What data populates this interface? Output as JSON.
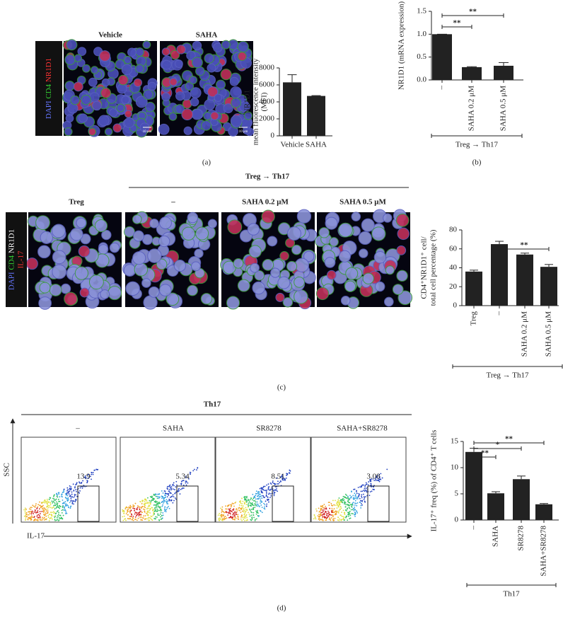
{
  "chart_data": [
    {
      "type": "bar",
      "ylabel": [
        "NR1D1",
        "mean fluorescence intensity",
        "(MFI)"
      ],
      "categories": [
        "Vehicle",
        "SAHA"
      ],
      "values": [
        6300,
        4700
      ],
      "errors": [
        900,
        40
      ],
      "color": "#222222",
      "ylim": [
        0,
        8000
      ],
      "yticks": [
        0,
        2000,
        4000,
        6000,
        8000
      ]
    },
    {
      "type": "bar",
      "ylabel": [
        "NR1D1 (mRNA expression)"
      ],
      "categories": [
        "–",
        "SAHA 0.2 μM",
        "SAHA 0.5 μM"
      ],
      "values": [
        1.0,
        0.28,
        0.31
      ],
      "errors": [
        0,
        0.01,
        0.07
      ],
      "color": "#222222",
      "ylim": [
        0,
        1.5
      ],
      "yticks": [
        {
          "value": 0,
          "label": "0.0"
        },
        {
          "value": 0.5,
          "label": "0.5"
        },
        {
          "value": 1,
          "label": "1.0"
        },
        {
          "value": 1.5,
          "label": "1.5"
        }
      ],
      "significance": [
        {
          "from": 0,
          "to": 1,
          "label": "**"
        },
        {
          "from": 0,
          "to": 2,
          "label": "**"
        }
      ],
      "group_label": "Treg → Th17"
    },
    {
      "type": "bar",
      "ylabel": [
        "CD4⁺NR1D1⁺ cell/",
        "total cell percentage (%)"
      ],
      "categories": [
        "Treg",
        "–",
        "SAHA 0.2 μM",
        "SAHA 0.5 μM"
      ],
      "values": [
        36,
        65,
        54,
        41
      ],
      "errors": [
        1.5,
        3,
        1.5,
        2.5
      ],
      "color": "#222222",
      "ylim": [
        0,
        80
      ],
      "yticks": [
        0,
        20,
        40,
        60,
        80
      ],
      "significance": [
        {
          "from": 1,
          "to": 3,
          "label": "**"
        }
      ],
      "group_label": "Treg → Th17"
    },
    {
      "type": "bar",
      "ylabel": [
        "IL-17⁺ freq (%) of CD4⁺ T cells"
      ],
      "categories": [
        "–",
        "SAHA",
        "SR8278",
        "SAHA+SR8278"
      ],
      "values": [
        13,
        5.1,
        7.8,
        3.0
      ],
      "errors": [
        0.7,
        0.3,
        0.6,
        0.15
      ],
      "color": "#222222",
      "ylim": [
        0,
        15
      ],
      "yticks": [
        0,
        5,
        10,
        15
      ],
      "significance": [
        {
          "from": 0,
          "to": 1,
          "label": "**"
        },
        {
          "from": 0,
          "to": 2,
          "label": "*"
        },
        {
          "from": 0,
          "to": 3,
          "label": "**"
        }
      ],
      "group_label": "Th17"
    }
  ],
  "figure": {
    "panel_labels": [
      "(a)",
      "(b)",
      "(c)",
      "(d)"
    ],
    "a": {
      "columns": [
        "Vehicle",
        "SAHA"
      ],
      "scale_bar": "10 μm",
      "stain_lines": [
        [
          {
            "name": "DAPI",
            "color": "#6677ff"
          },
          {
            "name": "CD4",
            "color": "#33cc33"
          },
          {
            "name": "NR1D1",
            "color": "#ff3333"
          }
        ]
      ]
    },
    "c": {
      "header": "Treg → Th17",
      "columns": [
        "Treg",
        "–",
        "SAHA 0.2 μM",
        "SAHA 0.5 μM"
      ],
      "stain_lines": [
        [
          {
            "name": "DAPI",
            "color": "#6677ff"
          },
          {
            "name": "CD4",
            "color": "#33cc33"
          },
          {
            "name": "NR1D1",
            "color": "#ffffff"
          }
        ],
        [
          {
            "name": "IL-17",
            "color": "#ff3333"
          }
        ]
      ]
    },
    "d": {
      "header": "Th17",
      "columns": [
        "–",
        "SAHA",
        "SR8278",
        "SAHA+SR8278"
      ],
      "gate_values": [
        13.9,
        5.34,
        8.51,
        3.08
      ],
      "y_axis": "SSC",
      "x_axis": "IL-17"
    }
  }
}
